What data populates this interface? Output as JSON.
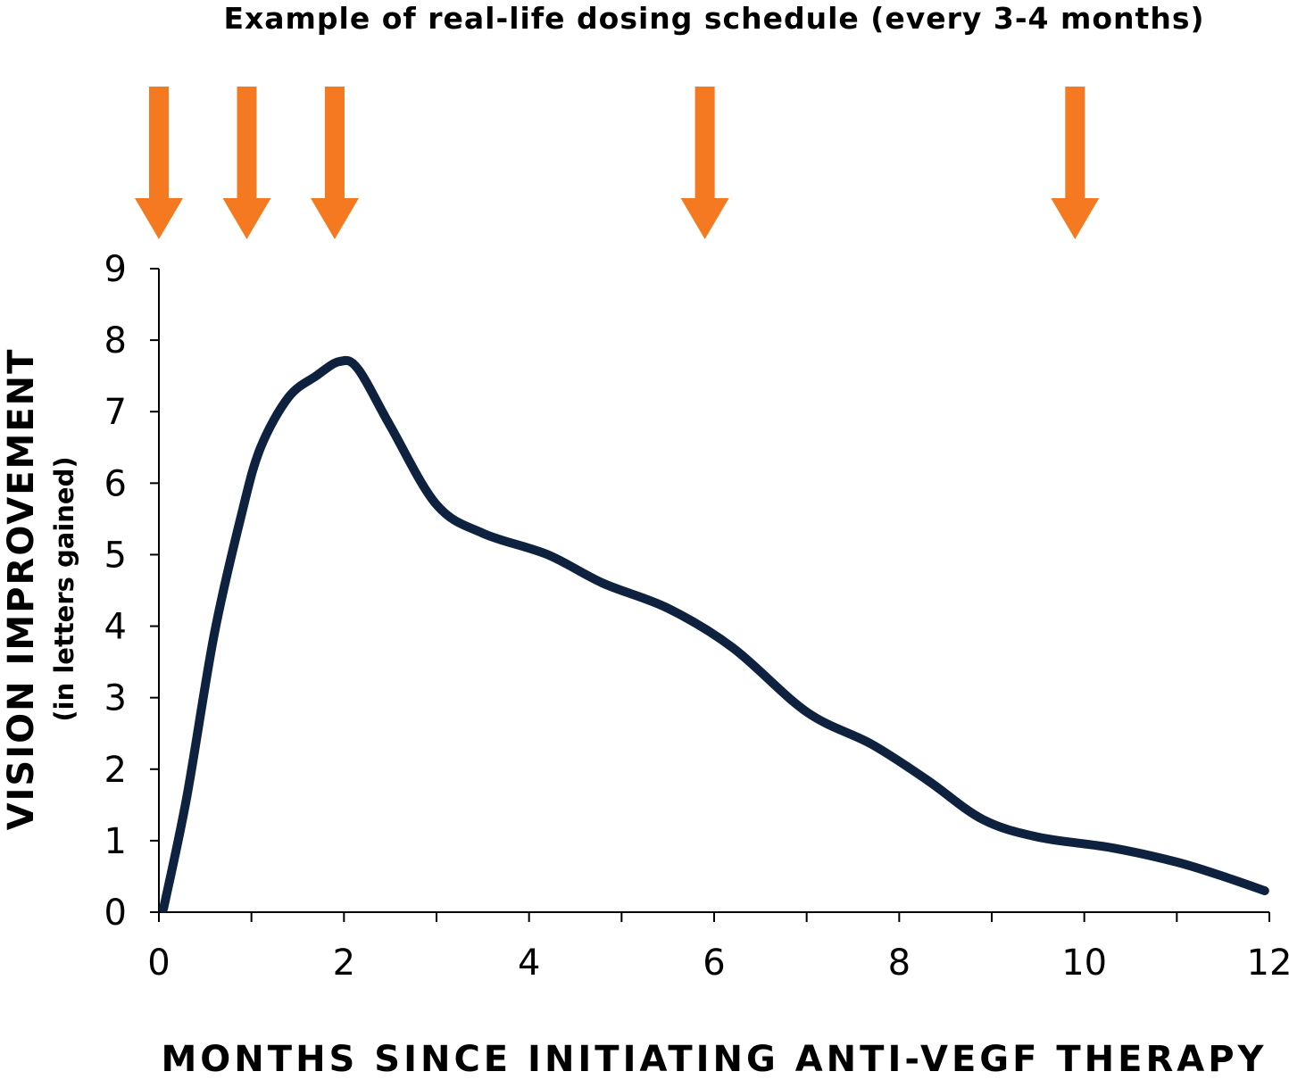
{
  "chart_data": {
    "type": "line",
    "title": "Example of real-life dosing schedule (every 3-4 months)",
    "xlabel": "MONTHS SINCE INITIATING ANTI-VEGF THERAPY",
    "ylabel": "VISION IMPROVEMENT",
    "ylabel_sub": "(in letters gained)",
    "xlim": [
      0,
      12
    ],
    "ylim": [
      0,
      9
    ],
    "x_ticks": [
      0,
      2,
      4,
      6,
      8,
      10,
      12
    ],
    "x_minor_ticks": [
      1,
      3,
      5,
      7,
      9,
      11
    ],
    "y_ticks": [
      0,
      1,
      2,
      3,
      4,
      5,
      6,
      7,
      8,
      9
    ],
    "grid": false,
    "series": [
      {
        "color": "#0e2240",
        "x": [
          0.05,
          0.3,
          0.6,
          0.9,
          1.1,
          1.4,
          1.7,
          1.95,
          2.15,
          2.5,
          3.0,
          3.5,
          4.2,
          4.8,
          5.5,
          6.2,
          7.0,
          7.7,
          8.3,
          8.9,
          9.5,
          10.3,
          11.0,
          11.5,
          11.95
        ],
        "y": [
          0.05,
          1.6,
          3.9,
          5.6,
          6.5,
          7.2,
          7.5,
          7.7,
          7.6,
          6.8,
          5.7,
          5.3,
          5.0,
          4.6,
          4.25,
          3.7,
          2.8,
          2.35,
          1.85,
          1.3,
          1.05,
          0.9,
          0.7,
          0.5,
          0.3
        ]
      }
    ],
    "dose_markers": {
      "color": "#f47920",
      "x": [
        0,
        0.95,
        1.9,
        5.9,
        9.9
      ]
    }
  }
}
